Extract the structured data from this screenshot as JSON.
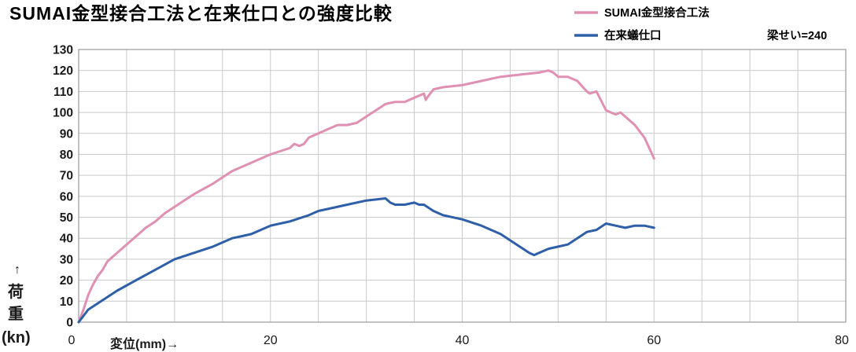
{
  "chart_data": {
    "type": "line",
    "title": "SUMAI金型接合工法と在来仕口との強度比較",
    "xlabel": "変位(mm)→",
    "ylabel_arrow": "↑",
    "ylabel_chars": [
      "荷",
      "重"
    ],
    "ylabel_unit": "(kn)",
    "note": "梁せい=240",
    "xlim": [
      0,
      80
    ],
    "ylim": [
      0,
      130
    ],
    "x_ticks": [
      "0",
      "20",
      "40",
      "60",
      "80"
    ],
    "y_ticks": [
      "0",
      "10",
      "20",
      "30",
      "40",
      "50",
      "60",
      "70",
      "80",
      "90",
      "100",
      "110",
      "120",
      "130"
    ],
    "grid": true,
    "legend_position": "top-right",
    "series": [
      {
        "name": "SUMAI金型接合工法",
        "color": "#e090b2",
        "x": [
          0,
          0.5,
          1,
          1.5,
          2,
          2.5,
          3,
          4,
          5,
          6,
          7,
          8,
          9,
          10,
          12,
          14,
          15,
          16,
          18,
          20,
          22,
          22.5,
          23,
          23.5,
          24,
          25,
          26,
          27,
          28,
          29,
          30,
          31,
          32,
          33,
          34,
          35,
          35.5,
          36,
          36.2,
          36.5,
          37,
          38,
          40,
          42,
          44,
          46,
          48,
          49,
          49.5,
          50,
          51,
          52,
          53,
          53.3,
          54,
          55,
          56,
          56.5,
          57,
          58,
          59,
          60
        ],
        "values": [
          0,
          6,
          13,
          18,
          22,
          25,
          29,
          33,
          37,
          41,
          45,
          48,
          52,
          55,
          61,
          66,
          69,
          72,
          76,
          80,
          83,
          85,
          84,
          85,
          88,
          90,
          92,
          94,
          94,
          95,
          98,
          101,
          104,
          105,
          105,
          107,
          108,
          109,
          106,
          108,
          111,
          112,
          113,
          115,
          117,
          118,
          119,
          120,
          119,
          117,
          117,
          115,
          110,
          109,
          110,
          101,
          99,
          100,
          98,
          94,
          88,
          78
        ]
      },
      {
        "name": "在来蟻仕口",
        "color": "#2e5fa8",
        "x": [
          0,
          0.5,
          1,
          2,
          3,
          4,
          6,
          8,
          10,
          12,
          14,
          16,
          17,
          18,
          20,
          22,
          24,
          25,
          26,
          28,
          30,
          32,
          32.5,
          33,
          34,
          35,
          35.5,
          36,
          37,
          38,
          40,
          42,
          44,
          46,
          47,
          47.5,
          48,
          49,
          50,
          51,
          52,
          53,
          54,
          55,
          56,
          57,
          58,
          59,
          60
        ],
        "values": [
          0,
          3,
          6,
          9,
          12,
          15,
          20,
          25,
          30,
          33,
          36,
          40,
          41,
          42,
          46,
          48,
          51,
          53,
          54,
          56,
          58,
          59,
          57,
          56,
          56,
          57,
          56,
          56,
          53,
          51,
          49,
          46,
          42,
          36,
          33,
          32,
          33,
          35,
          36,
          37,
          40,
          43,
          44,
          47,
          46,
          45,
          46,
          46,
          45
        ]
      }
    ]
  }
}
